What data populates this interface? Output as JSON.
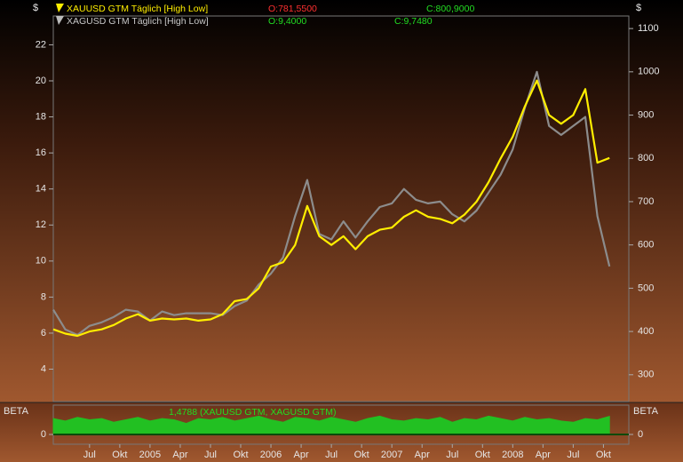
{
  "chart_data": [
    {
      "type": "line",
      "ylabel": "$",
      "y2label": "$",
      "x": [
        2004.2,
        2004.3,
        2004.4,
        2004.5,
        2004.6,
        2004.7,
        2004.8,
        2004.9,
        2005.0,
        2005.1,
        2005.2,
        2005.3,
        2005.4,
        2005.5,
        2005.6,
        2005.7,
        2005.8,
        2005.9,
        2006.0,
        2006.1,
        2006.2,
        2006.3,
        2006.4,
        2006.5,
        2006.6,
        2006.7,
        2006.8,
        2006.9,
        2007.0,
        2007.1,
        2007.2,
        2007.3,
        2007.4,
        2007.5,
        2007.6,
        2007.7,
        2007.8,
        2007.9,
        2008.0,
        2008.1,
        2008.2,
        2008.3,
        2008.4,
        2008.5,
        2008.6,
        2008.7,
        2008.8
      ],
      "xlim": [
        2004.2,
        2008.96
      ],
      "ylim": [
        2.2,
        23.6
      ],
      "yticks": [
        4,
        6,
        8,
        10,
        12,
        14,
        16,
        18,
        20,
        22
      ],
      "y2lim": [
        238,
        1129
      ],
      "y2ticks": [
        300,
        400,
        500,
        600,
        700,
        800,
        900,
        1000,
        1100
      ],
      "series": [
        {
          "name": "XAGUSD GTM Täglich [High Low]",
          "color": "#8c8c8c",
          "axis": "y",
          "open": {
            "value": 9.4,
            "label": "O:9,4000"
          },
          "close": {
            "value": 9.748,
            "label": "C:9,7480"
          },
          "values": [
            7.3,
            6.2,
            5.9,
            6.4,
            6.6,
            6.9,
            7.3,
            7.2,
            6.7,
            7.2,
            7.0,
            7.1,
            7.1,
            7.1,
            7.0,
            7.5,
            7.8,
            8.7,
            9.3,
            10.2,
            12.5,
            14.5,
            11.5,
            11.2,
            12.2,
            11.3,
            12.2,
            13.0,
            13.2,
            14.0,
            13.4,
            13.2,
            13.3,
            12.6,
            12.2,
            12.8,
            13.8,
            14.8,
            16.2,
            18.5,
            20.5,
            17.5,
            17.0,
            17.5,
            18.0,
            12.5,
            9.7
          ]
        },
        {
          "name": "XAUUSD GTM Täglich [High Low]",
          "color": "#ffee00",
          "axis": "y2",
          "open": {
            "value": 781.55,
            "label": "O:781,5500"
          },
          "close": {
            "value": 800.9,
            "label": "C:800,9000"
          },
          "values": [
            405,
            395,
            390,
            400,
            405,
            415,
            430,
            440,
            425,
            430,
            428,
            430,
            425,
            428,
            440,
            470,
            475,
            500,
            550,
            560,
            600,
            690,
            620,
            600,
            620,
            590,
            620,
            635,
            640,
            665,
            680,
            665,
            660,
            650,
            670,
            700,
            745,
            800,
            850,
            920,
            980,
            900,
            880,
            900,
            960,
            790,
            801
          ]
        }
      ]
    },
    {
      "type": "area",
      "ylabel": "BETA",
      "y2label": "BETA",
      "annotation": "1,4788 (XAUUSD GTM, XAGUSD GTM)",
      "x": [
        2004.2,
        2004.3,
        2004.4,
        2004.5,
        2004.6,
        2004.7,
        2004.8,
        2004.9,
        2005.0,
        2005.1,
        2005.2,
        2005.3,
        2005.4,
        2005.5,
        2005.6,
        2005.7,
        2005.8,
        2005.9,
        2006.0,
        2006.1,
        2006.2,
        2006.3,
        2006.4,
        2006.5,
        2006.6,
        2006.7,
        2006.8,
        2006.9,
        2007.0,
        2007.1,
        2007.2,
        2007.3,
        2007.4,
        2007.5,
        2007.6,
        2007.7,
        2007.8,
        2007.9,
        2008.0,
        2008.1,
        2008.2,
        2008.3,
        2008.4,
        2008.5,
        2008.6,
        2008.7,
        2008.8
      ],
      "xlim": [
        2004.2,
        2008.96
      ],
      "xticks": [
        {
          "value": 2004.5,
          "label": "Jul"
        },
        {
          "value": 2004.75,
          "label": "Okt"
        },
        2005,
        {
          "value": 2005.25,
          "label": "Apr"
        },
        {
          "value": 2005.5,
          "label": "Jul"
        },
        {
          "value": 2005.75,
          "label": "Okt"
        },
        2006,
        {
          "value": 2006.25,
          "label": "Apr"
        },
        {
          "value": 2006.5,
          "label": "Jul"
        },
        {
          "value": 2006.75,
          "label": "Okt"
        },
        2007,
        {
          "value": 2007.25,
          "label": "Apr"
        },
        {
          "value": 2007.5,
          "label": "Jul"
        },
        {
          "value": 2007.75,
          "label": "Okt"
        },
        2008,
        {
          "value": 2008.25,
          "label": "Apr"
        },
        {
          "value": 2008.5,
          "label": "Jul"
        },
        {
          "value": 2008.75,
          "label": "Okt"
        }
      ],
      "ylim": [
        -0.8,
        2.4
      ],
      "yticks": [
        0
      ],
      "y2ticks": [
        0
      ],
      "color": "#22c022",
      "values": [
        1.3,
        1.1,
        1.4,
        1.2,
        1.3,
        1.0,
        1.2,
        1.4,
        1.1,
        1.3,
        1.2,
        0.9,
        1.3,
        1.2,
        1.4,
        1.1,
        1.3,
        1.5,
        1.2,
        1.0,
        1.4,
        1.3,
        1.1,
        1.4,
        1.2,
        1.0,
        1.3,
        1.5,
        1.2,
        1.1,
        1.3,
        1.2,
        1.4,
        1.0,
        1.3,
        1.2,
        1.5,
        1.3,
        1.1,
        1.4,
        1.2,
        1.3,
        1.1,
        1.0,
        1.3,
        1.2,
        1.4788
      ]
    }
  ]
}
